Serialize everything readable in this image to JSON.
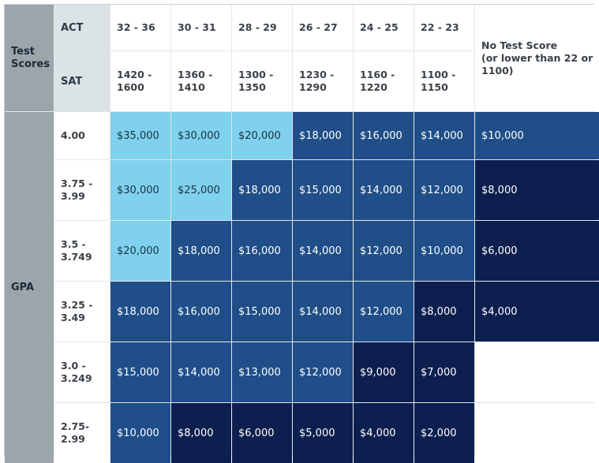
{
  "headers": {
    "test_scores": "Test\nScores",
    "act": "ACT",
    "sat": "SAT",
    "gpa": "GPA",
    "no_test": "No Test Score\n(or lower than 22 or\n1100)"
  },
  "act_ranges": [
    "32 - 36",
    "30 - 31",
    "28 - 29",
    "26 - 27",
    "24 - 25",
    "22 - 23"
  ],
  "sat_ranges": [
    "1420 -\n1600",
    "1360 -\n1410",
    "1300 -\n1350",
    "1230 -\n1290",
    "1160 -\n1220",
    "1100 -\n1150"
  ],
  "rows": [
    {
      "gpa": "4.00",
      "values": [
        "$35,000",
        "$30,000",
        "$20,000",
        "$18,000",
        "$16,000",
        "$14,000",
        "$10,000"
      ],
      "shades": [
        "light",
        "light",
        "light",
        "mid",
        "mid",
        "mid",
        "mid"
      ]
    },
    {
      "gpa": "3.75 -\n3.99",
      "values": [
        "$30,000",
        "$25,000",
        "$18,000",
        "$15,000",
        "$14,000",
        "$12,000",
        "$8,000"
      ],
      "shades": [
        "light",
        "light",
        "mid",
        "mid",
        "mid",
        "mid",
        "dark"
      ]
    },
    {
      "gpa": "3.5 -\n3.749",
      "values": [
        "$20,000",
        "$18,000",
        "$16,000",
        "$14,000",
        "$12,000",
        "$10,000",
        "$6,000"
      ],
      "shades": [
        "light",
        "mid",
        "mid",
        "mid",
        "mid",
        "mid",
        "dark"
      ]
    },
    {
      "gpa": "3.25 -\n3.49",
      "values": [
        "$18,000",
        "$16,000",
        "$15,000",
        "$14,000",
        "$12,000",
        "$8,000",
        "$4,000"
      ],
      "shades": [
        "mid",
        "mid",
        "mid",
        "mid",
        "mid",
        "dark",
        "dark"
      ]
    },
    {
      "gpa": "3.0 -\n3.249",
      "values": [
        "$15,000",
        "$14,000",
        "$13,000",
        "$12,000",
        "$9,000",
        "$7,000",
        ""
      ],
      "shades": [
        "mid",
        "mid",
        "mid",
        "mid",
        "dark",
        "dark",
        "white"
      ]
    },
    {
      "gpa": "2.75-\n2.99",
      "values": [
        "$10,000",
        "$8,000",
        "$6,000",
        "$5,000",
        "$4,000",
        "$2,000",
        ""
      ],
      "shades": [
        "mid",
        "dark",
        "dark",
        "dark",
        "dark",
        "dark",
        "white"
      ]
    }
  ],
  "colors": {
    "light": "#7fd1ed",
    "mid": "#1f4e88",
    "dark": "#0c1f4e",
    "header_gray": "#9ba5aa",
    "label_gray": "#dbe3e7"
  }
}
